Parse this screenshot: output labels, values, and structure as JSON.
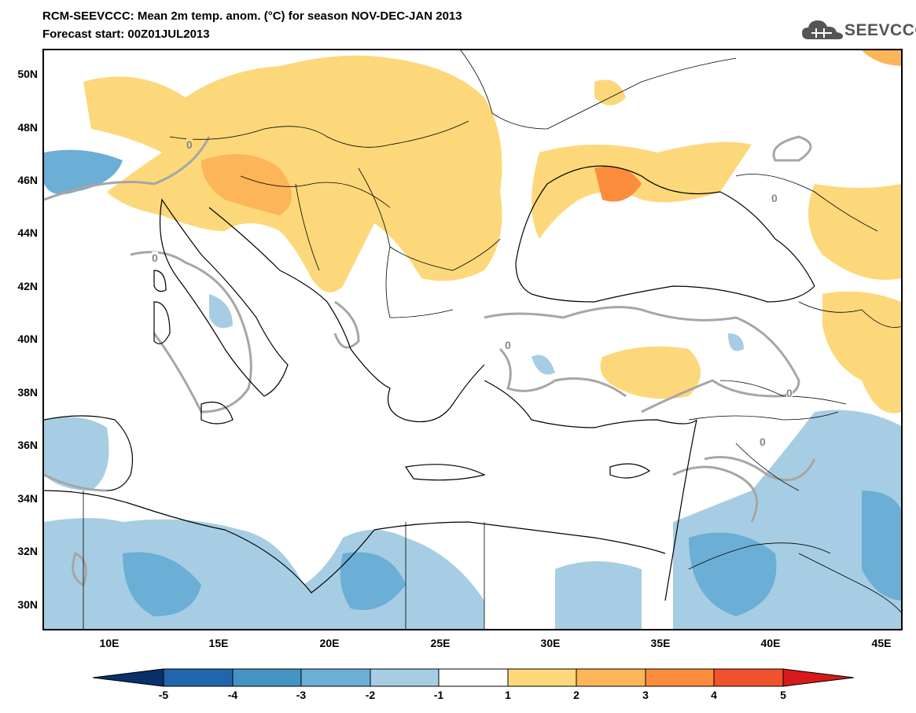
{
  "header": {
    "title_line1": "RCM-SEEVCCC: Mean 2m temp. anom. (°C) for season NOV-DEC-JAN 2013",
    "title_line2": "Forecast start: 00Z01JUL2013",
    "logo_text": "SEEVCCC"
  },
  "map": {
    "lat_labels": [
      "50N",
      "48N",
      "46N",
      "44N",
      "42N",
      "40N",
      "38N",
      "36N",
      "34N",
      "32N",
      "30N"
    ],
    "lon_labels": [
      "10E",
      "15E",
      "20E",
      "25E",
      "30E",
      "35E",
      "40E",
      "45E"
    ],
    "contour_label": "0",
    "colors": {
      "neg5": "#08306b",
      "neg4": "#2166ac",
      "neg3": "#4393c3",
      "neg2": "#6baed6",
      "neg1": "#a6cde3",
      "pos1": "#fdd87a",
      "pos2": "#fdb55a",
      "pos3": "#fc8d3c",
      "pos4": "#f0522b",
      "pos5": "#d7191c",
      "contour": "#a6a6a6"
    }
  },
  "colorbar": {
    "labels": [
      "-5",
      "-4",
      "-3",
      "-2",
      "-1",
      "1",
      "2",
      "3",
      "4",
      "5"
    ]
  }
}
